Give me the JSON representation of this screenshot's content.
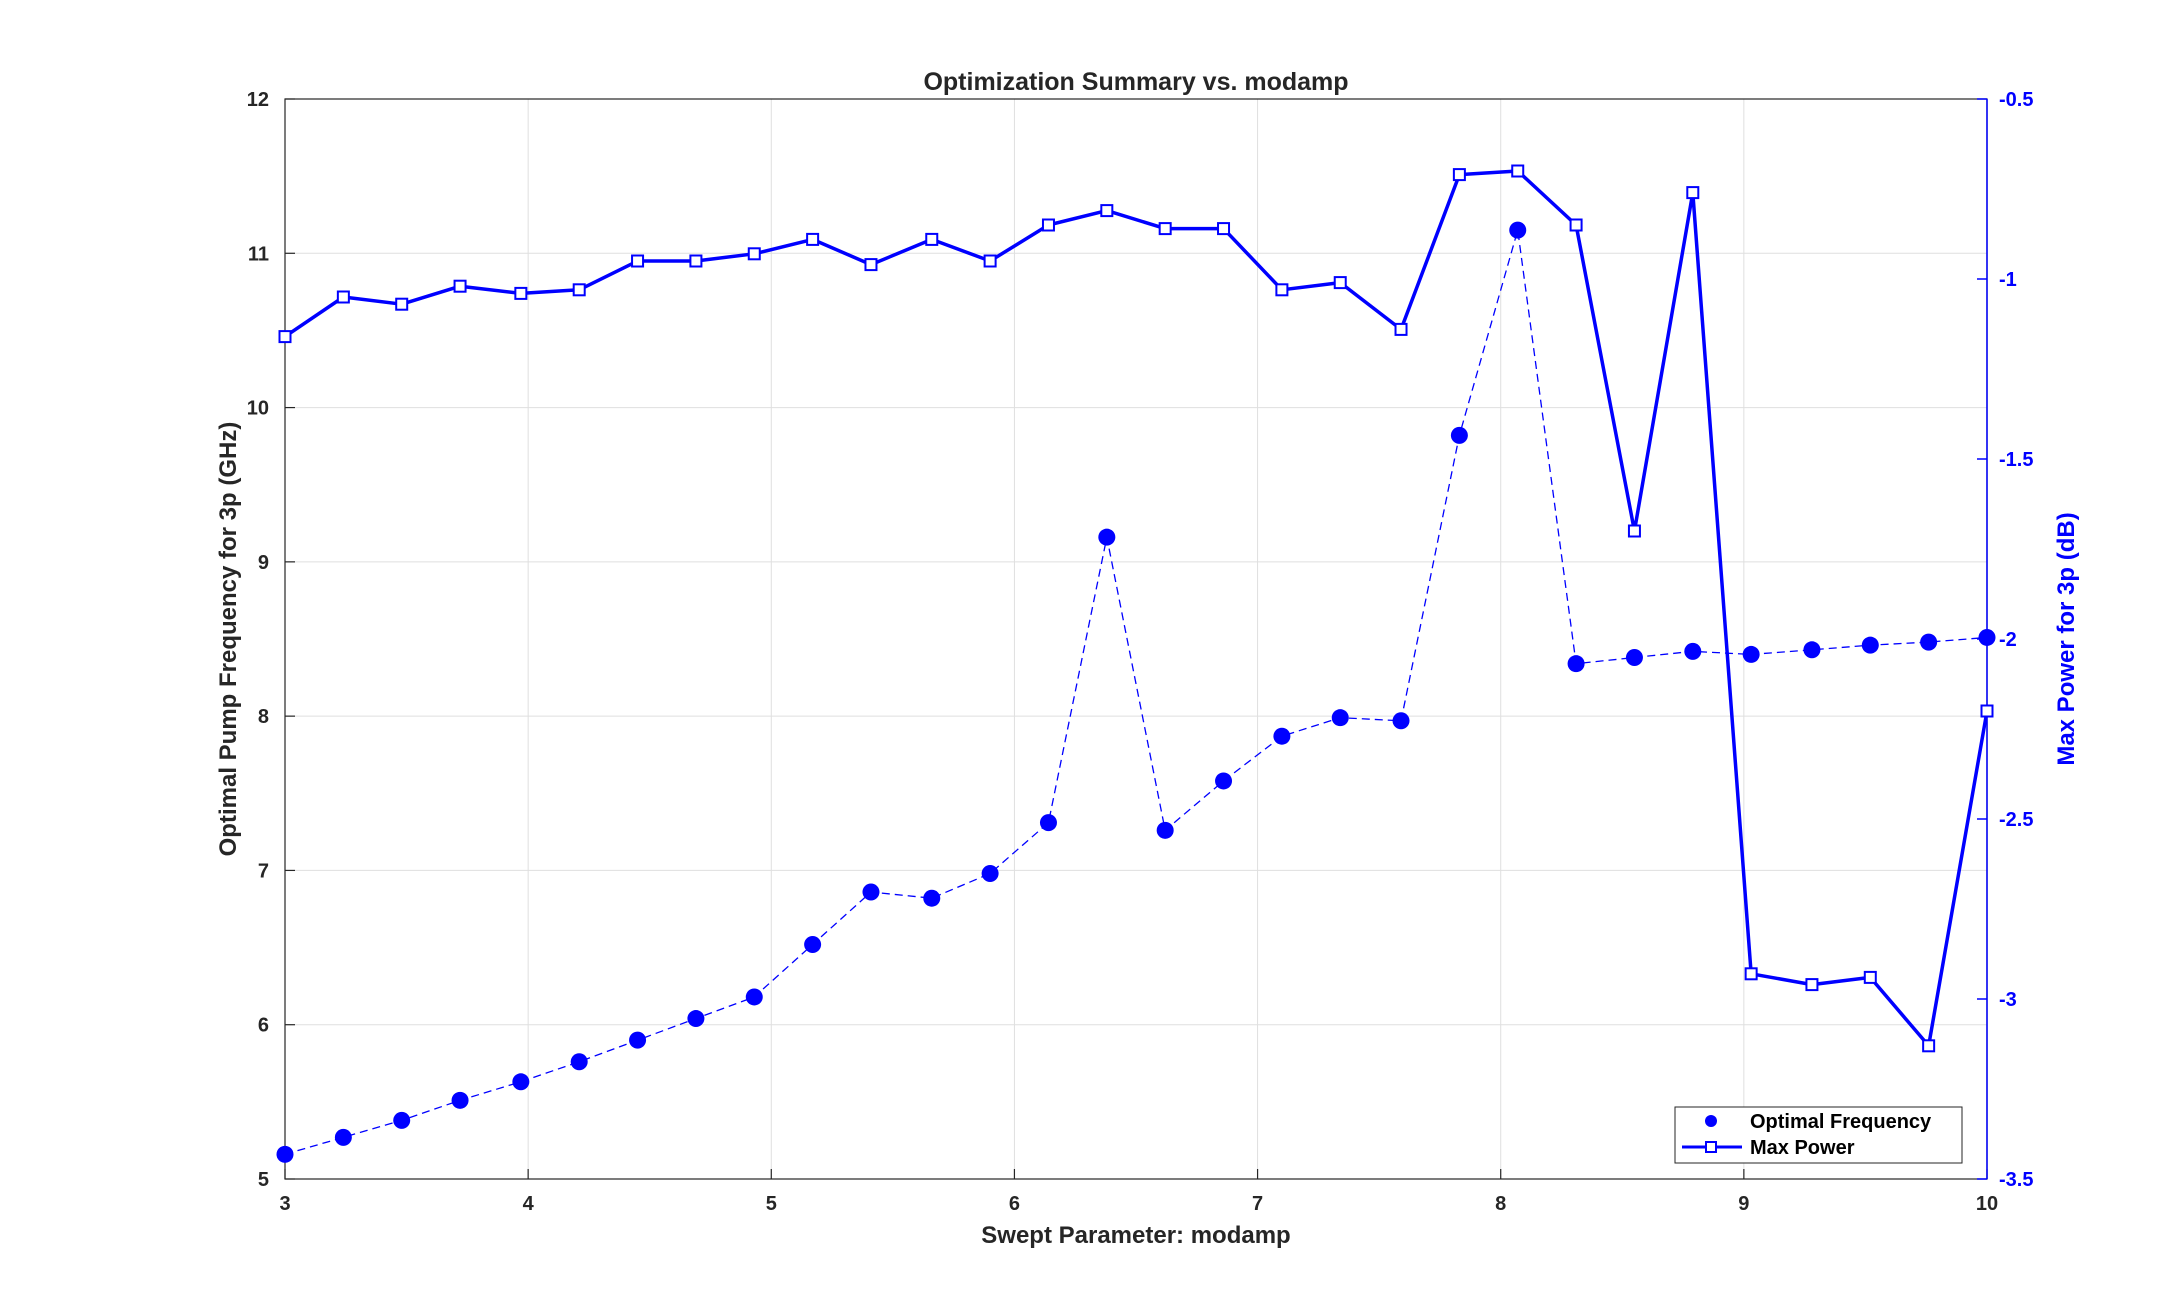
{
  "chart_data": {
    "type": "line",
    "title": "Optimization Summary vs. modamp",
    "xlabel": "Swept Parameter: modamp",
    "ylabel_left": "Optimal Pump Frequency for 3p (GHz)",
    "ylabel_right": "Max Power for 3p (dB)",
    "xlim": [
      3,
      10
    ],
    "ylim_left": [
      5,
      12
    ],
    "ylim_right": [
      -3.5,
      -0.5
    ],
    "x_ticks": [
      "3",
      "4",
      "5",
      "6",
      "7",
      "8",
      "9",
      "10"
    ],
    "y_left_ticks": [
      "5",
      "6",
      "7",
      "8",
      "9",
      "10",
      "11",
      "12"
    ],
    "y_right_ticks": [
      "-0.5",
      "-1",
      "-1.5",
      "-2",
      "-2.5",
      "-3",
      "-3.5"
    ],
    "grid": true,
    "legend_position": "bottom-right",
    "series": [
      {
        "name": "Optimal Frequency",
        "axis": "left",
        "color": "#0000ff",
        "style": "dashed-dots",
        "x": [
          3.0,
          3.24,
          3.48,
          3.72,
          3.97,
          4.21,
          4.45,
          4.69,
          4.93,
          5.17,
          5.41,
          5.66,
          5.9,
          6.14,
          6.38,
          6.62,
          6.86,
          7.1,
          7.34,
          7.59,
          7.83,
          8.07,
          8.31,
          8.55,
          8.79,
          9.03,
          9.28,
          9.52,
          9.76,
          10.0
        ],
        "values": [
          5.16,
          5.27,
          5.38,
          5.51,
          5.63,
          5.76,
          5.9,
          6.04,
          6.18,
          6.52,
          6.86,
          6.82,
          6.98,
          7.31,
          9.16,
          7.26,
          7.58,
          7.87,
          7.99,
          7.97,
          9.82,
          11.15,
          8.34,
          8.38,
          8.42,
          8.4,
          8.43,
          8.46,
          8.48,
          8.51
        ]
      },
      {
        "name": "Max Power",
        "axis": "right",
        "color": "#0000ff",
        "style": "solid-squares",
        "x": [
          3.0,
          3.24,
          3.48,
          3.72,
          3.97,
          4.21,
          4.45,
          4.69,
          4.93,
          5.17,
          5.41,
          5.66,
          5.9,
          6.14,
          6.38,
          6.62,
          6.86,
          7.1,
          7.34,
          7.59,
          7.83,
          8.07,
          8.31,
          8.55,
          8.79,
          9.03,
          9.28,
          9.52,
          9.76,
          10.0
        ],
        "values": [
          -1.16,
          -1.05,
          -1.07,
          -1.02,
          -1.04,
          -1.03,
          -0.95,
          -0.95,
          -0.93,
          -0.89,
          -0.96,
          -0.89,
          -0.95,
          -0.85,
          -0.81,
          -0.86,
          -0.86,
          -1.03,
          -1.01,
          -1.14,
          -0.71,
          -0.7,
          -0.85,
          -1.7,
          -0.76,
          -2.93,
          -2.96,
          -2.94,
          -3.13,
          -2.2
        ]
      }
    ]
  }
}
